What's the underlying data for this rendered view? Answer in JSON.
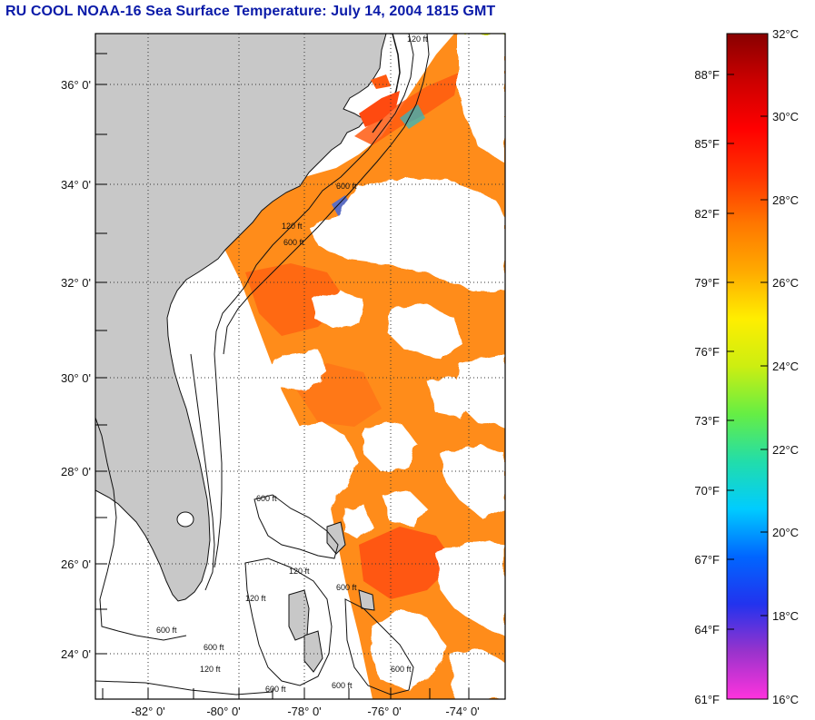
{
  "title": "RU COOL  NOAA-16  Sea Surface Temperature:  July 14, 2004 1815 GMT",
  "map": {
    "lon_labels": [
      "-82° 0'",
      "-80° 0'",
      "-78° 0'",
      "-76° 0'",
      "-74° 0'"
    ],
    "lat_labels": [
      "36° 0'",
      "34° 0'",
      "32° 0'",
      "30° 0'",
      "28° 0'",
      "26° 0'",
      "24° 0'"
    ],
    "depth_labels": [
      "120 ft",
      "600 ft"
    ],
    "land_color": "#c8c8c8",
    "cloud_color": "#ffffff"
  },
  "colorbar": {
    "fahrenheit_labels": [
      "88°F",
      "85°F",
      "82°F",
      "79°F",
      "76°F",
      "73°F",
      "70°F",
      "67°F",
      "64°F",
      "61°F"
    ],
    "celsius_labels": [
      "32°C",
      "30°C",
      "28°C",
      "26°C",
      "24°C",
      "22°C",
      "20°C",
      "18°C",
      "16°C"
    ],
    "celsius_min": 16,
    "celsius_max": 32,
    "stops": [
      "#ff33dd",
      "#9933cc",
      "#2233ee",
      "#0066ff",
      "#00ccff",
      "#22ddaa",
      "#66ee44",
      "#ccee11",
      "#ffee00",
      "#ffaa00",
      "#ff7700",
      "#ff3300",
      "#ff0000",
      "#cc0000",
      "#880000"
    ]
  }
}
